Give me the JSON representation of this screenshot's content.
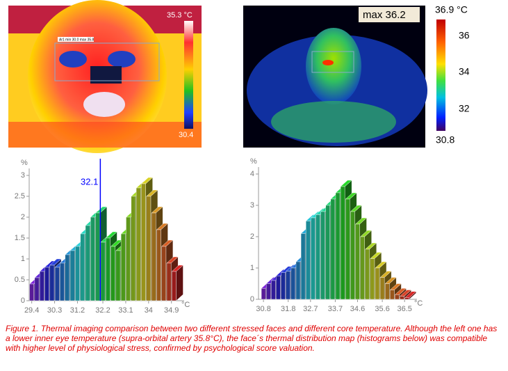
{
  "images": [
    {
      "area_label": "Ar1 min 30.0 max 35.8",
      "colorbar": {
        "max": "35.3 °C",
        "min": "30.4"
      }
    },
    {
      "max_label": "max 36.2",
      "colorbar": {
        "max": "36.9 °C",
        "ticks": [
          "36",
          "34",
          "32"
        ],
        "min": "30.8"
      }
    }
  ],
  "chart_data": [
    {
      "type": "bar",
      "y_label": "%",
      "x_label": "°C",
      "marker": 32.1,
      "x": [
        29.4,
        29.6,
        29.8,
        30.0,
        30.2,
        30.4,
        30.6,
        30.8,
        31.0,
        31.2,
        31.4,
        31.6,
        31.8,
        32.0,
        32.2,
        32.4,
        32.6,
        32.8,
        33.0,
        33.2,
        33.4,
        33.6,
        33.8,
        34.0,
        34.2,
        34.4,
        34.6,
        34.8,
        35.0
      ],
      "values": [
        0.4,
        0.55,
        0.7,
        0.8,
        0.85,
        0.8,
        0.9,
        1.1,
        1.2,
        1.3,
        1.6,
        1.8,
        2.0,
        2.1,
        1.4,
        1.5,
        1.3,
        1.2,
        1.6,
        2.0,
        2.5,
        2.7,
        2.8,
        2.5,
        2.1,
        1.7,
        1.3,
        0.9,
        0.7
      ],
      "xlim": [
        29.3,
        35.4
      ],
      "xticks": [
        29.4,
        30.3,
        31.2,
        32.2,
        33.1,
        34.0,
        34.9
      ],
      "ylim": [
        0,
        3
      ],
      "yticks": [
        0,
        0.5,
        1,
        1.5,
        2,
        2.5,
        3
      ]
    },
    {
      "type": "bar",
      "y_label": "%",
      "x_label": "°C",
      "x": [
        30.8,
        31.0,
        31.2,
        31.4,
        31.6,
        31.8,
        32.0,
        32.2,
        32.4,
        32.6,
        32.8,
        33.0,
        33.2,
        33.4,
        33.6,
        33.8,
        34.0,
        34.2,
        34.4,
        34.6,
        34.8,
        35.0,
        35.2,
        35.4,
        35.6,
        35.8,
        36.0,
        36.2,
        36.4,
        36.6
      ],
      "values": [
        0.35,
        0.5,
        0.6,
        0.75,
        0.85,
        0.9,
        1.0,
        1.2,
        2.1,
        2.5,
        2.6,
        2.7,
        2.8,
        3.0,
        3.2,
        3.4,
        3.6,
        3.2,
        2.8,
        2.4,
        2.0,
        1.6,
        1.3,
        1.0,
        0.7,
        0.5,
        0.3,
        0.15,
        0.1,
        0.05
      ],
      "xlim": [
        30.6,
        37.0
      ],
      "xticks": [
        30.8,
        31.8,
        32.7,
        33.7,
        34.6,
        35.6,
        36.5
      ],
      "ylim": [
        0,
        4
      ],
      "yticks": [
        0,
        1,
        2,
        3,
        4
      ]
    }
  ],
  "caption": "Figure 1.  Thermal imaging comparison between two different stressed faces and different core temperature. Although the left one has a lower inner eye temperature (supra-orbital artery 35.8°C), the face´s thermal distribution map (histograms below) was compatible with higher level of physiological stress, confirmed by psychological score valuation."
}
